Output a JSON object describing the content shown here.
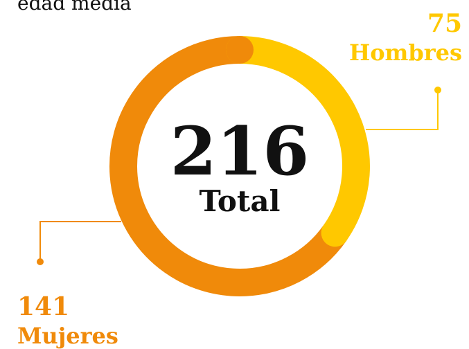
{
  "chart_data": {
    "type": "donut",
    "title": "edad media",
    "categories": [
      "Hombres",
      "Mujeres"
    ],
    "values": [
      75,
      141
    ],
    "colors": [
      "#ffc800",
      "#f08a0a"
    ],
    "total": 216,
    "total_label": "Total"
  }
}
